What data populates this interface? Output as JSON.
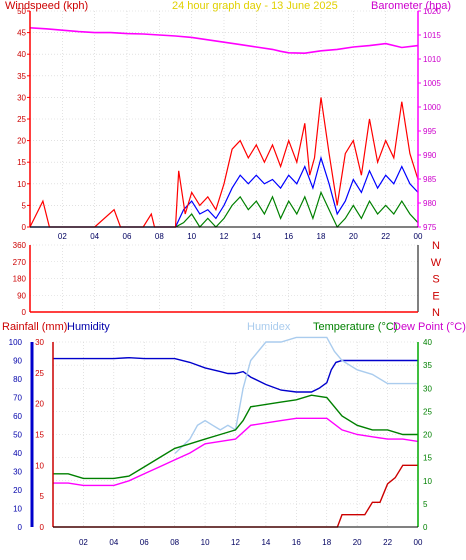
{
  "colors": {
    "windspeed": "#ff0000",
    "wind_avg": "#0000ff",
    "wind_lull": "#008000",
    "barometer": "#ff00ff",
    "title": "#e0d000",
    "rain": "#cc0000",
    "humidity": "#0000cc",
    "humidex": "#aaccee",
    "temperature": "#008000",
    "dewpoint": "#ff00ff",
    "grid": "#d0d0d0",
    "axis_red": "#ff0000",
    "axis_green": "#00aa00",
    "axis_blue": "#0000cc",
    "border": "#000000"
  },
  "chart_data": [
    {
      "type": "line",
      "title": "24 hour graph day - 13 June 2025",
      "ylabel_left": "Windspeed (kph)",
      "ylabel_right": "Barometer (hpa)",
      "x_ticks": [
        "02",
        "04",
        "06",
        "08",
        "10",
        "12",
        "14",
        "16",
        "18",
        "20",
        "22",
        "00"
      ],
      "left_ylim": [
        0,
        50
      ],
      "left_ticks": [
        "0",
        "5",
        "10",
        "15",
        "20",
        "25",
        "30",
        "35",
        "40",
        "45",
        "50"
      ],
      "right_ylim": [
        975,
        1020
      ],
      "right_ticks": [
        "975",
        "980",
        "985",
        "990",
        "995",
        "1000",
        "1005",
        "1010",
        "1015",
        "1020"
      ],
      "grid": true,
      "series": [
        {
          "name": "Barometer (hpa)",
          "axis": "right",
          "x": [
            0,
            1,
            2,
            3,
            4,
            5,
            6,
            7,
            8,
            9,
            10,
            11,
            12,
            13,
            14,
            15,
            15.5,
            16,
            17,
            18,
            19,
            20,
            21,
            22,
            23,
            24
          ],
          "values": [
            1016.5,
            1016.3,
            1016.0,
            1015.7,
            1015.5,
            1015.5,
            1015.3,
            1015.2,
            1015.0,
            1014.8,
            1014.5,
            1014.0,
            1013.5,
            1013.0,
            1012.5,
            1012.0,
            1011.6,
            1011.3,
            1011.2,
            1011.7,
            1012.0,
            1012.5,
            1012.8,
            1013.2,
            1012.4,
            1012.8
          ]
        },
        {
          "name": "Windspeed gust (kph)",
          "axis": "left",
          "x": [
            0,
            0.8,
            1.2,
            1.6,
            2,
            4,
            5.2,
            5.6,
            7,
            7.5,
            7.7,
            8,
            9,
            9.2,
            9.6,
            10,
            10.5,
            11,
            11.5,
            12,
            12.5,
            13,
            13.5,
            14,
            14.5,
            15,
            15.5,
            16,
            16.5,
            17,
            17.3,
            17.6,
            18,
            18.5,
            19,
            19.5,
            20,
            20.5,
            21,
            21.5,
            22,
            22.5,
            23,
            23.5,
            24
          ],
          "values": [
            0,
            6,
            0,
            0,
            0,
            0,
            4,
            0,
            0,
            3,
            0,
            0,
            0,
            13,
            3,
            8,
            5,
            7,
            4,
            10,
            18,
            20,
            16,
            19,
            15,
            19,
            14,
            20,
            15,
            24,
            12,
            16,
            30,
            17,
            5,
            17,
            20,
            12,
            25,
            15,
            20,
            16,
            29,
            17,
            11
          ]
        },
        {
          "name": "Windspeed average (kph)",
          "axis": "left",
          "x": [
            0,
            9,
            9.5,
            10,
            10.5,
            11,
            11.5,
            12,
            12.5,
            13,
            13.5,
            14,
            14.5,
            15,
            15.5,
            16,
            16.5,
            17,
            17.5,
            18,
            18.5,
            19,
            19.5,
            20,
            20.5,
            21,
            21.5,
            22,
            22.5,
            23,
            23.5,
            24
          ],
          "values": [
            0,
            0,
            4,
            6,
            3,
            4,
            2,
            5,
            9,
            12,
            10,
            12,
            10,
            11,
            9,
            12,
            10,
            14,
            9,
            16,
            10,
            3,
            6,
            11,
            8,
            13,
            9,
            12,
            10,
            14,
            10,
            8
          ]
        },
        {
          "name": "Windspeed lull (kph)",
          "axis": "left",
          "x": [
            0,
            9,
            9.5,
            10,
            10.5,
            11,
            11.5,
            12,
            12.5,
            13,
            13.5,
            14,
            14.5,
            15,
            15.5,
            16,
            16.5,
            17,
            17.5,
            18,
            18.5,
            19,
            19.5,
            20,
            20.5,
            21,
            21.5,
            22,
            22.5,
            23,
            23.5,
            24
          ],
          "values": [
            0,
            0,
            1,
            3,
            0,
            2,
            0,
            2,
            5,
            7,
            4,
            6,
            3,
            7,
            2,
            6,
            3,
            7,
            2,
            8,
            4,
            0,
            2,
            5,
            2,
            6,
            3,
            5,
            3,
            6,
            3,
            1
          ]
        }
      ]
    },
    {
      "type": "line",
      "title": "",
      "x_ticks": [
        "02",
        "04",
        "06",
        "08",
        "10",
        "12",
        "14",
        "16",
        "18",
        "20",
        "22",
        "00"
      ],
      "left_ticks": [
        "0",
        "90",
        "180",
        "270",
        "360"
      ],
      "right_labels": [
        "N",
        "W",
        "S",
        "E",
        "N"
      ],
      "ylim": [
        0,
        360
      ],
      "grid": true,
      "series": []
    },
    {
      "type": "line",
      "x_ticks": [
        "02",
        "04",
        "06",
        "08",
        "10",
        "12",
        "14",
        "16",
        "18",
        "20",
        "22",
        "00"
      ],
      "legend": [
        "Rainfall (mm)",
        "Humidity",
        "Humidex",
        "Temperature (°C)",
        "Dew Point (°C)"
      ],
      "humidity_ticks": [
        "0",
        "10",
        "20",
        "30",
        "40",
        "50",
        "60",
        "70",
        "80",
        "90",
        "100"
      ],
      "rain_ticks": [
        "0",
        "5",
        "10",
        "15",
        "20",
        "25",
        "30"
      ],
      "temp_ticks": [
        "0",
        "5",
        "10",
        "15",
        "20",
        "25",
        "30",
        "35",
        "40"
      ],
      "grid": true,
      "series": [
        {
          "name": "Humidity",
          "axis": "humidity",
          "x": [
            0,
            4,
            5,
            6,
            7,
            8,
            9,
            10,
            11,
            11.5,
            12,
            12.5,
            13,
            14,
            15,
            16,
            17,
            17.5,
            18,
            18.3,
            18.6,
            19,
            20,
            21,
            22,
            23,
            24
          ],
          "values": [
            91,
            91,
            91.5,
            91,
            91,
            91,
            89,
            86,
            84,
            83,
            83,
            84,
            81,
            77,
            74,
            73,
            73,
            75,
            78,
            85,
            89,
            90,
            90,
            90,
            90,
            90,
            90
          ]
        },
        {
          "name": "Humidex",
          "axis": "temp",
          "x": [
            8,
            8.05,
            9,
            9.5,
            10,
            10.5,
            11,
            11.5,
            12,
            12.5,
            13,
            14,
            15,
            16,
            17,
            18,
            18.5,
            19,
            20,
            21,
            22,
            23,
            24
          ],
          "values": [
            16,
            16,
            19,
            22,
            23,
            22,
            21,
            22,
            21,
            30,
            36,
            40,
            40,
            41,
            41,
            41,
            38,
            36,
            34,
            33,
            31,
            31,
            31
          ]
        },
        {
          "name": "Temperature (°C)",
          "axis": "temp",
          "x": [
            0,
            1,
            2,
            3,
            4,
            5,
            6,
            7,
            8,
            9,
            10,
            11,
            12,
            12.5,
            13,
            14,
            15,
            16,
            17,
            18,
            19,
            20,
            21,
            22,
            23,
            24
          ],
          "values": [
            11.5,
            11.5,
            10.5,
            10.5,
            10.5,
            11,
            13,
            15,
            17,
            18,
            19,
            20,
            21,
            23,
            26,
            26.5,
            27,
            27.5,
            28.5,
            28,
            24,
            22,
            21,
            21,
            20,
            20
          ]
        },
        {
          "name": "Dew Point (°C)",
          "axis": "temp",
          "x": [
            0,
            1,
            2,
            3,
            4,
            5,
            6,
            7,
            8,
            9,
            10,
            11,
            12,
            13,
            14,
            15,
            16,
            17,
            18,
            19,
            20,
            21,
            22,
            23,
            24
          ],
          "values": [
            9.5,
            9.5,
            9,
            9,
            9,
            10,
            11.5,
            13,
            14.5,
            16,
            18,
            18.5,
            19,
            22,
            22.5,
            23,
            23.5,
            23.5,
            23.5,
            21,
            20,
            19.5,
            19,
            19,
            18.5
          ]
        },
        {
          "name": "Rainfall (mm)",
          "axis": "rain",
          "x": [
            0,
            18.7,
            19,
            20.5,
            21,
            21.5,
            22,
            22.5,
            23,
            24
          ],
          "values": [
            0,
            0,
            2,
            2,
            4,
            4,
            7,
            8,
            10,
            10
          ]
        }
      ]
    }
  ]
}
